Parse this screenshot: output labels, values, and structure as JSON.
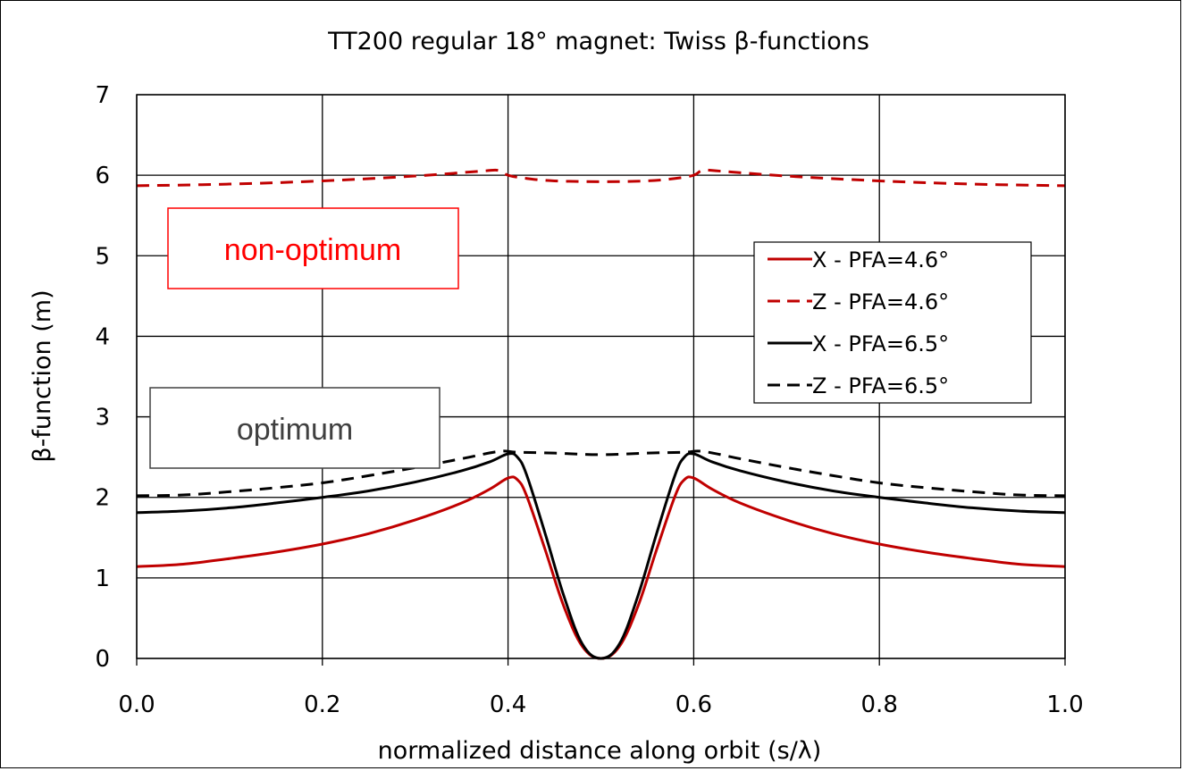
{
  "chart_data": {
    "type": "line",
    "title": "TT200 regular 18° magnet: Twiss β-functions",
    "xlabel": "normalized distance along orbit (s/λ)",
    "ylabel": "β-function (m)",
    "xlim": [
      0,
      1
    ],
    "ylim": [
      0,
      7
    ],
    "x_ticks": [
      "0.0",
      "0.2",
      "0.4",
      "0.6",
      "0.8",
      "1.0"
    ],
    "y_ticks": [
      "0",
      "1",
      "2",
      "3",
      "4",
      "5",
      "6",
      "7"
    ],
    "grid": true,
    "legend_position": "right",
    "series": [
      {
        "name": "X - PFA=4.6°",
        "color": "#c00000",
        "dash": "solid",
        "x": [
          0,
          0.05,
          0.1,
          0.15,
          0.2,
          0.25,
          0.3,
          0.35,
          0.38,
          0.4,
          0.41,
          0.42,
          0.44,
          0.46,
          0.48,
          0.5,
          0.52,
          0.54,
          0.56,
          0.58,
          0.59,
          0.6,
          0.62,
          0.65,
          0.7,
          0.75,
          0.8,
          0.85,
          0.9,
          0.95,
          1.0
        ],
        "y": [
          1.14,
          1.17,
          1.24,
          1.32,
          1.42,
          1.55,
          1.72,
          1.93,
          2.1,
          2.24,
          2.22,
          2.02,
          1.35,
          0.65,
          0.15,
          0.0,
          0.15,
          0.65,
          1.35,
          2.02,
          2.22,
          2.24,
          2.1,
          1.93,
          1.72,
          1.55,
          1.42,
          1.32,
          1.24,
          1.17,
          1.14
        ]
      },
      {
        "name": "Z - PFA=4.6°",
        "color": "#c00000",
        "dash": "dashed",
        "x": [
          0,
          0.1,
          0.2,
          0.3,
          0.37,
          0.39,
          0.4,
          0.42,
          0.45,
          0.5,
          0.55,
          0.58,
          0.6,
          0.61,
          0.63,
          0.7,
          0.8,
          0.9,
          1.0
        ],
        "y": [
          5.87,
          5.89,
          5.93,
          5.99,
          6.05,
          6.06,
          6.0,
          5.96,
          5.93,
          5.92,
          5.93,
          5.96,
          6.0,
          6.06,
          6.05,
          5.99,
          5.93,
          5.89,
          5.87
        ]
      },
      {
        "name": "X - PFA=6.5°",
        "color": "#000000",
        "dash": "solid",
        "x": [
          0,
          0.05,
          0.1,
          0.15,
          0.2,
          0.25,
          0.3,
          0.35,
          0.38,
          0.4,
          0.41,
          0.42,
          0.44,
          0.46,
          0.48,
          0.5,
          0.52,
          0.54,
          0.56,
          0.58,
          0.59,
          0.6,
          0.62,
          0.65,
          0.7,
          0.75,
          0.8,
          0.85,
          0.9,
          0.95,
          1.0
        ],
        "y": [
          1.81,
          1.83,
          1.87,
          1.93,
          2.0,
          2.08,
          2.19,
          2.33,
          2.44,
          2.54,
          2.5,
          2.28,
          1.55,
          0.78,
          0.18,
          0.0,
          0.18,
          0.78,
          1.55,
          2.28,
          2.5,
          2.54,
          2.44,
          2.33,
          2.19,
          2.08,
          2.0,
          1.93,
          1.87,
          1.83,
          1.81
        ]
      },
      {
        "name": "Z - PFA=6.5°",
        "color": "#000000",
        "dash": "dashed",
        "x": [
          0,
          0.05,
          0.1,
          0.15,
          0.2,
          0.25,
          0.3,
          0.35,
          0.39,
          0.41,
          0.45,
          0.5,
          0.55,
          0.59,
          0.61,
          0.65,
          0.7,
          0.75,
          0.8,
          0.85,
          0.9,
          0.95,
          1.0
        ],
        "y": [
          2.02,
          2.03,
          2.07,
          2.12,
          2.18,
          2.27,
          2.37,
          2.48,
          2.57,
          2.56,
          2.55,
          2.53,
          2.55,
          2.56,
          2.57,
          2.48,
          2.37,
          2.27,
          2.18,
          2.12,
          2.07,
          2.03,
          2.02
        ]
      }
    ],
    "annotations": [
      {
        "text": "non-optimum",
        "color": "#ff0000"
      },
      {
        "text": "optimum",
        "color": "#404040"
      }
    ]
  }
}
